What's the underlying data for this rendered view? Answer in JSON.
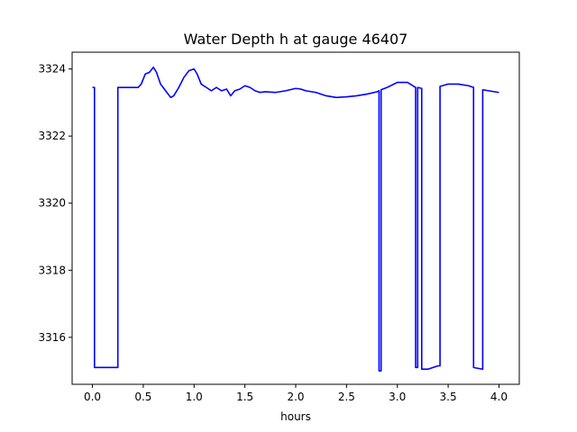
{
  "chart_data": {
    "type": "line",
    "title": "Water Depth h at gauge 46407",
    "xlabel": "hours",
    "ylabel": "",
    "xlim": [
      -0.2,
      4.2
    ],
    "ylim": [
      3314.6,
      3324.5
    ],
    "xticks": [
      0.0,
      0.5,
      1.0,
      1.5,
      2.0,
      2.5,
      3.0,
      3.5,
      4.0
    ],
    "xtick_labels": [
      "0.0",
      "0.5",
      "1.0",
      "1.5",
      "2.0",
      "2.5",
      "3.0",
      "3.5",
      "4.0"
    ],
    "yticks": [
      3316,
      3318,
      3320,
      3322,
      3324
    ],
    "ytick_labels": [
      "3316",
      "3318",
      "3320",
      "3322",
      "3324"
    ],
    "grid": false,
    "legend": "none",
    "series": [
      {
        "color": "#0000ff",
        "x": [
          0.0,
          0.02,
          0.02,
          0.25,
          0.25,
          0.45,
          0.48,
          0.52,
          0.56,
          0.6,
          0.63,
          0.67,
          0.72,
          0.77,
          0.8,
          0.85,
          0.9,
          0.95,
          1.0,
          1.03,
          1.07,
          1.12,
          1.17,
          1.22,
          1.27,
          1.32,
          1.36,
          1.4,
          1.45,
          1.5,
          1.55,
          1.6,
          1.65,
          1.7,
          1.8,
          1.9,
          2.0,
          2.05,
          2.1,
          2.2,
          2.3,
          2.4,
          2.5,
          2.6,
          2.7,
          2.8,
          2.82,
          2.82,
          2.84,
          2.84,
          2.9,
          3.0,
          3.1,
          3.18,
          3.18,
          3.2,
          3.2,
          3.24,
          3.24,
          3.25,
          3.25,
          3.3,
          3.4,
          3.42,
          3.42,
          3.5,
          3.6,
          3.7,
          3.75,
          3.75,
          3.84,
          3.84,
          3.9,
          4.0
        ],
        "y": [
          3323.45,
          3323.45,
          3315.1,
          3315.1,
          3323.45,
          3323.45,
          3323.55,
          3323.85,
          3323.9,
          3324.05,
          3323.9,
          3323.55,
          3323.35,
          3323.15,
          3323.2,
          3323.45,
          3323.75,
          3323.95,
          3324.0,
          3323.85,
          3323.55,
          3323.45,
          3323.35,
          3323.45,
          3323.35,
          3323.4,
          3323.2,
          3323.35,
          3323.4,
          3323.5,
          3323.45,
          3323.35,
          3323.3,
          3323.32,
          3323.3,
          3323.35,
          3323.42,
          3323.4,
          3323.35,
          3323.3,
          3323.2,
          3323.15,
          3323.17,
          3323.2,
          3323.25,
          3323.32,
          3323.35,
          3315.0,
          3315.0,
          3323.38,
          3323.45,
          3323.6,
          3323.6,
          3323.45,
          3315.1,
          3315.1,
          3323.45,
          3323.42,
          3315.05,
          3315.05,
          3315.05,
          3315.05,
          3315.15,
          3315.15,
          3323.48,
          3323.55,
          3323.55,
          3323.5,
          3323.45,
          3315.1,
          3315.05,
          3323.38,
          3323.35,
          3323.3
        ]
      }
    ]
  }
}
